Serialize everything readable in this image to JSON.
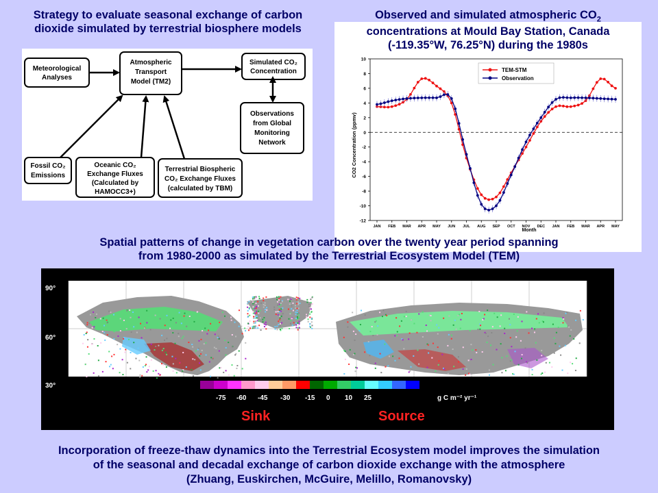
{
  "flow_title": {
    "line1": "Strategy to evaluate seasonal exchange of carbon",
    "line2": "dioxide simulated by terrestrial biosphere models"
  },
  "co2_title": {
    "line1": "Observed and simulated atmospheric CO",
    "line1_sub": "2",
    "line2": "concentrations at Mould Bay Station, Canada",
    "line3": "(-119.35°W, 76.25°N) during the 1980s"
  },
  "flow": {
    "met": [
      "Meteorological",
      "Analyses"
    ],
    "atm": [
      "Atmospheric",
      "Transport",
      "Model (TM2)"
    ],
    "sim": [
      "Simulated CO₂",
      "Concentration"
    ],
    "obs": [
      "Observations",
      "from Global",
      "Monitoring",
      "Network"
    ],
    "fossil": [
      "Fossil CO₂",
      "Emissions"
    ],
    "ocean": [
      "Oceanic CO₂",
      "Exchange Fluxes",
      "(Calculated by",
      "HAMOCC3+)"
    ],
    "terr": [
      "Terrestrial Biospheric",
      "CO₂ Exchange Fluxes",
      "(calculated by TBM)"
    ]
  },
  "map_title": {
    "line1": "Spatial patterns of change in vegetation carbon over the twenty year period spanning",
    "line2": "from 1980-2000 as simulated by the Terrestrial Ecosystem Model (TEM)"
  },
  "map": {
    "lat_labels": [
      "90°",
      "60°",
      "30°"
    ],
    "colorbar": {
      "colors": [
        "#990099",
        "#cc00cc",
        "#ff33ff",
        "#ff99cc",
        "#ffccee",
        "#ffcc99",
        "#ff9966",
        "#ff0000",
        "#006600",
        "#00aa00",
        "#33cc66",
        "#00cc99",
        "#66ffff",
        "#33ccff",
        "#3366ff",
        "#0000ff"
      ],
      "ticks": [
        "-75",
        "-60",
        "-45",
        "-30",
        "-15",
        "0",
        "10",
        "25"
      ],
      "unit": "g C m⁻² yr⁻¹"
    },
    "sink_label": "Sink",
    "source_label": "Source"
  },
  "footer": {
    "line1": "Incorporation of freeze-thaw dynamics into the Terrestrial Ecosystem model improves the simulation",
    "line2": "of the seasonal and decadal exchange of carbon dioxide exchange with the atmosphere",
    "line3": "(Zhuang, Euskirchen, McGuire, Melillo, Romanovsky)"
  },
  "chart_data": {
    "type": "line",
    "x": [
      "JAN",
      "FEB",
      "MAR",
      "APR",
      "MAY",
      "JUN",
      "JUL",
      "AUG",
      "SEP",
      "OCT",
      "NOV",
      "DEC",
      "JAN",
      "FEB",
      "MAR",
      "APR",
      "MAY"
    ],
    "xlabel": "Month",
    "ylabel": "CO2 Concentration (ppmv)",
    "ylim": [
      -12,
      10
    ],
    "yticks": [
      -12,
      -10,
      -8,
      -6,
      -4,
      -2,
      0,
      2,
      4,
      6,
      8,
      10
    ],
    "legend_position": "top-right",
    "series": [
      {
        "name": "TEM-STM",
        "color": "#ee1111",
        "values": [
          3.5,
          3.5,
          4.5,
          7.3,
          6.3,
          4.0,
          -3.5,
          -8.5,
          -8.8,
          -5.5,
          -2.0,
          1.5,
          3.5,
          3.5,
          4.3,
          7.3,
          6.0
        ]
      },
      {
        "name": "Observation",
        "color": "#000080",
        "values": [
          3.8,
          4.3,
          4.6,
          4.7,
          4.7,
          4.6,
          -3.0,
          -9.8,
          -10.0,
          -5.8,
          -1.3,
          2.0,
          4.5,
          4.7,
          4.7,
          4.6,
          4.5
        ]
      }
    ]
  }
}
